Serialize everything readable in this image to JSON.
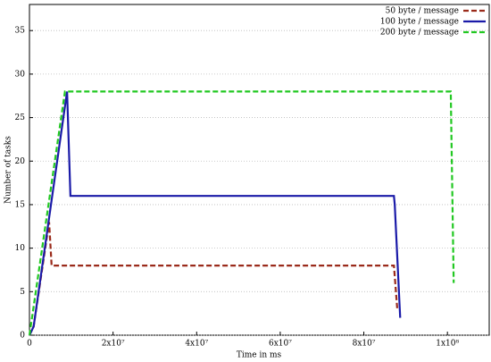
{
  "chart_data": {
    "type": "line",
    "x_label": "Time in ms",
    "y_label": "Number of tasks",
    "series": [
      {
        "name": "50 byte / message",
        "color": "#9a2a1a",
        "style": "dashed",
        "x": [
          0,
          1000000,
          4700000,
          5300000,
          87200000,
          88000000
        ],
        "values": [
          0,
          1,
          13,
          8,
          8,
          3
        ]
      },
      {
        "name": "100 byte / message",
        "color": "#1a1aa8",
        "style": "solid",
        "x": [
          0,
          1000000,
          9000000,
          9800000,
          87200000,
          87400000,
          88700000
        ],
        "values": [
          0,
          1,
          28,
          16,
          16,
          15,
          2
        ]
      },
      {
        "name": "200 byte / message",
        "color": "#22c822",
        "style": "dashed",
        "x": [
          0,
          8500000,
          100800000,
          101500000
        ],
        "values": [
          0,
          28,
          28,
          6
        ]
      }
    ],
    "xlim": [
      0,
      110000000
    ],
    "xticks": [
      0,
      {
        "value": 20000000,
        "label": "2x10⁷"
      },
      {
        "value": 40000000,
        "label": "4x10⁷"
      },
      {
        "value": 60000000,
        "label": "6x10⁷"
      },
      {
        "value": 80000000,
        "label": "8x10⁷"
      },
      {
        "value": 100000000,
        "label": "1x10⁸"
      }
    ],
    "ylim": [
      0,
      38
    ],
    "yticks": [
      0,
      5,
      10,
      15,
      20,
      25,
      30,
      35
    ],
    "grid": true,
    "legend": "top-right"
  }
}
